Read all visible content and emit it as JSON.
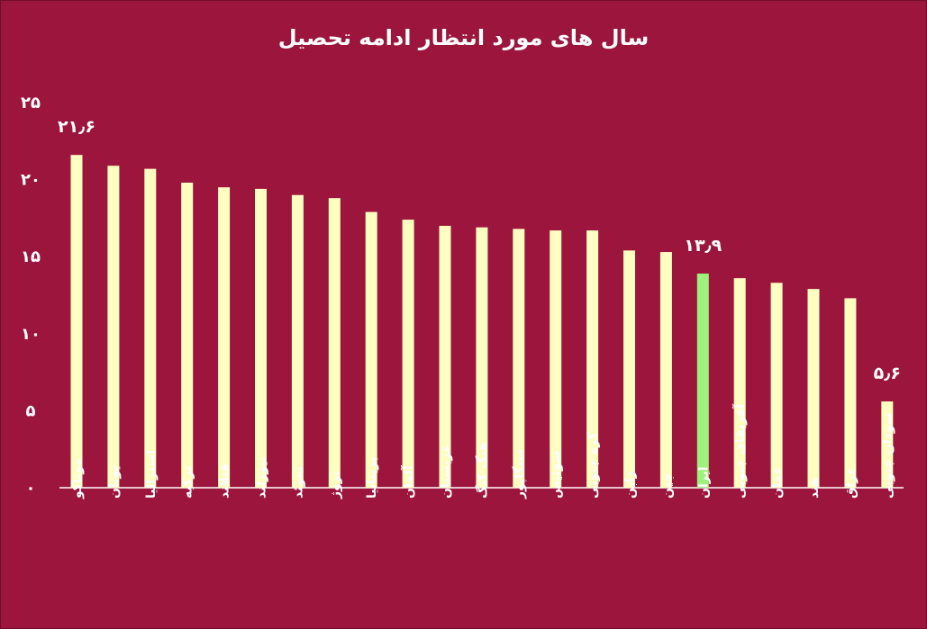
{
  "chart_data": {
    "type": "bar",
    "title": "سال های مورد انتظار ادامه تحصیل",
    "categories": [
      "موناکو",
      "یونان",
      "استرالیا",
      "ترکیه",
      "فنلاند",
      "نیوزلند",
      "سوئد",
      "نروژ",
      "بریتانیا",
      "آلمان",
      "عربستان",
      "هنگ کنگ",
      "سنگاپور",
      "سوئیس",
      "کره جنوبی",
      "ژاپن",
      "چین",
      "ایران",
      "آفریقای جنوبی",
      "عمان",
      "هند",
      "عراق",
      "سودان جنوبی"
    ],
    "values": [
      21.6,
      20.9,
      20.7,
      19.8,
      19.5,
      19.4,
      19.0,
      18.8,
      17.9,
      17.4,
      17.0,
      16.9,
      16.8,
      16.7,
      16.7,
      15.4,
      15.3,
      13.9,
      13.6,
      13.3,
      12.9,
      12.3,
      5.6
    ],
    "highlight_category": "ایران",
    "colors": {
      "bar": "#ffffc2",
      "highlight": "#9cf27c",
      "background": "#9c153c",
      "text": "#ffffff"
    },
    "yticks": [
      "۰",
      "۵",
      "۱۰",
      "۱۵",
      "۲۰",
      "۲۵"
    ],
    "ylim": [
      0,
      25
    ],
    "data_labels": [
      {
        "category": "موناکو",
        "text": "۲۱٫۶"
      },
      {
        "category": "ایران",
        "text": "۱۳٫۹"
      },
      {
        "category": "سودان جنوبی",
        "text": "۵٫۶"
      }
    ],
    "grid": false,
    "legend": "none"
  }
}
